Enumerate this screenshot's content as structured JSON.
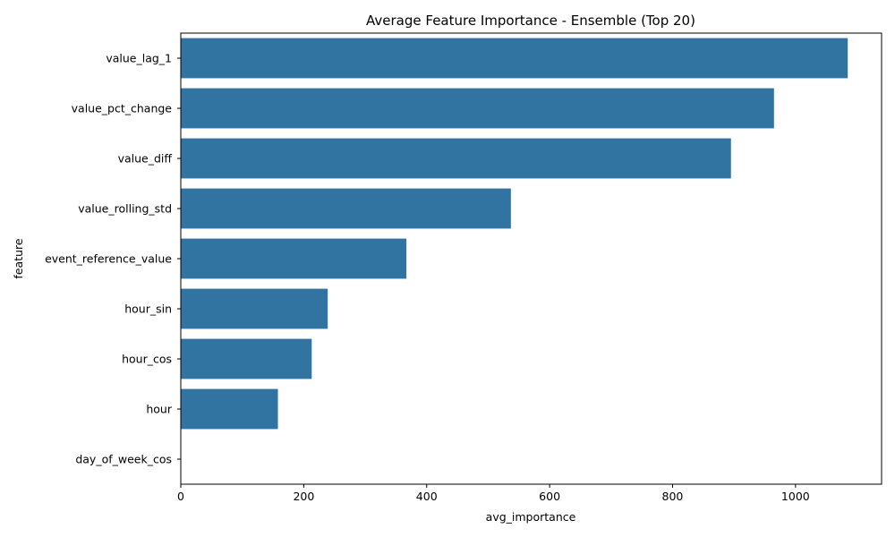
{
  "chart_data": {
    "type": "bar",
    "orientation": "horizontal",
    "title": "Average Feature Importance - Ensemble (Top 20)",
    "xlabel": "avg_importance",
    "ylabel": "feature",
    "categories": [
      "value_lag_1",
      "value_pct_change",
      "value_diff",
      "value_rolling_std",
      "event_reference_value",
      "hour_sin",
      "hour_cos",
      "hour",
      "day_of_week_cos"
    ],
    "values": [
      1085,
      965,
      895,
      537,
      367,
      239,
      213,
      158,
      0
    ],
    "xlim": [
      0,
      1140
    ],
    "xticks": [
      0,
      200,
      400,
      600,
      800,
      1000
    ],
    "grid": false,
    "bar_color": "#3274a1"
  }
}
